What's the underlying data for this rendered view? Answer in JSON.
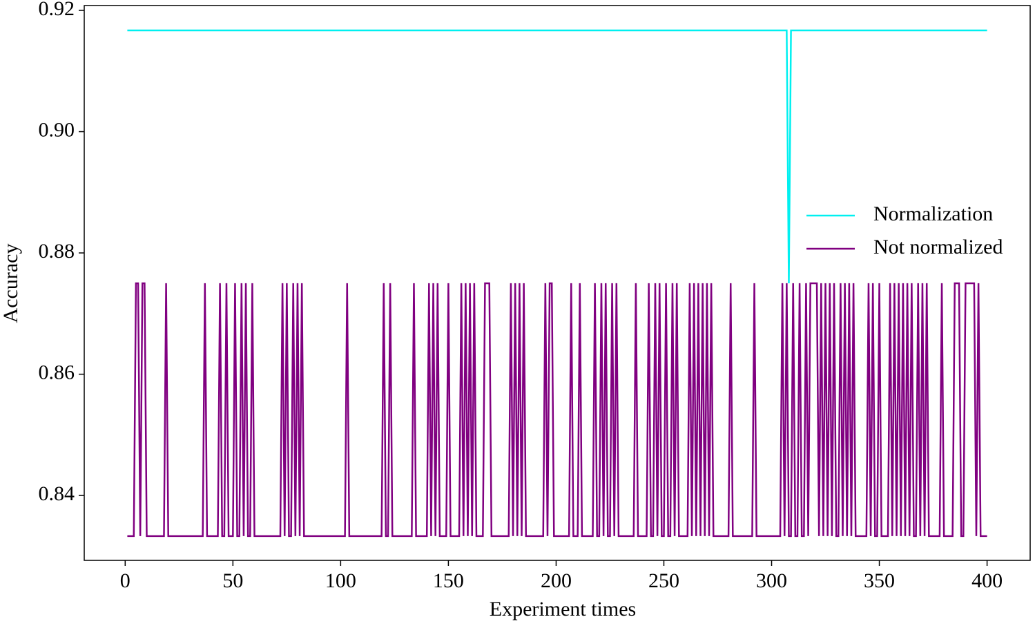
{
  "chart_data": {
    "type": "line",
    "xlabel": "Experiment times",
    "ylabel": "Accuracy",
    "xlim": [
      -19,
      420
    ],
    "ylim": [
      0.8293,
      0.9208
    ],
    "xticks": [
      0,
      50,
      100,
      150,
      200,
      250,
      300,
      350,
      400
    ],
    "yticks": [
      0.84,
      0.86,
      0.88,
      {
        "value": 0.9,
        "label": "0.90"
      },
      0.92
    ],
    "legend": "center right",
    "x": [
      1,
      2,
      3,
      4,
      5,
      6,
      7,
      8,
      9,
      10,
      11,
      12,
      13,
      14,
      15,
      16,
      17,
      18,
      19,
      20,
      21,
      22,
      23,
      24,
      25,
      26,
      27,
      28,
      29,
      30,
      31,
      32,
      33,
      34,
      35,
      36,
      37,
      38,
      39,
      40,
      41,
      42,
      43,
      44,
      45,
      46,
      47,
      48,
      49,
      50,
      51,
      52,
      53,
      54,
      55,
      56,
      57,
      58,
      59,
      60,
      61,
      62,
      63,
      64,
      65,
      66,
      67,
      68,
      69,
      70,
      71,
      72,
      73,
      74,
      75,
      76,
      77,
      78,
      79,
      80,
      81,
      82,
      83,
      84,
      85,
      86,
      87,
      88,
      89,
      90,
      91,
      92,
      93,
      94,
      95,
      96,
      97,
      98,
      99,
      100,
      101,
      102,
      103,
      104,
      105,
      106,
      107,
      108,
      109,
      110,
      111,
      112,
      113,
      114,
      115,
      116,
      117,
      118,
      119,
      120,
      121,
      122,
      123,
      124,
      125,
      126,
      127,
      128,
      129,
      130,
      131,
      132,
      133,
      134,
      135,
      136,
      137,
      138,
      139,
      140,
      141,
      142,
      143,
      144,
      145,
      146,
      147,
      148,
      149,
      150,
      151,
      152,
      153,
      154,
      155,
      156,
      157,
      158,
      159,
      160,
      161,
      162,
      163,
      164,
      165,
      166,
      167,
      168,
      169,
      170,
      171,
      172,
      173,
      174,
      175,
      176,
      177,
      178,
      179,
      180,
      181,
      182,
      183,
      184,
      185,
      186,
      187,
      188,
      189,
      190,
      191,
      192,
      193,
      194,
      195,
      196,
      197,
      198,
      199,
      200,
      201,
      202,
      203,
      204,
      205,
      206,
      207,
      208,
      209,
      210,
      211,
      212,
      213,
      214,
      215,
      216,
      217,
      218,
      219,
      220,
      221,
      222,
      223,
      224,
      225,
      226,
      227,
      228,
      229,
      230,
      231,
      232,
      233,
      234,
      235,
      236,
      237,
      238,
      239,
      240,
      241,
      242,
      243,
      244,
      245,
      246,
      247,
      248,
      249,
      250,
      251,
      252,
      253,
      254,
      255,
      256,
      257,
      258,
      259,
      260,
      261,
      262,
      263,
      264,
      265,
      266,
      267,
      268,
      269,
      270,
      271,
      272,
      273,
      274,
      275,
      276,
      277,
      278,
      279,
      280,
      281,
      282,
      283,
      284,
      285,
      286,
      287,
      288,
      289,
      290,
      291,
      292,
      293,
      294,
      295,
      296,
      297,
      298,
      299,
      300,
      301,
      302,
      303,
      304,
      305,
      306,
      307,
      308,
      309,
      310,
      311,
      312,
      313,
      314,
      315,
      316,
      317,
      318,
      319,
      320,
      321,
      322,
      323,
      324,
      325,
      326,
      327,
      328,
      329,
      330,
      331,
      332,
      333,
      334,
      335,
      336,
      337,
      338,
      339,
      340,
      341,
      342,
      343,
      344,
      345,
      346,
      347,
      348,
      349,
      350,
      351,
      352,
      353,
      354,
      355,
      356,
      357,
      358,
      359,
      360,
      361,
      362,
      363,
      364,
      365,
      366,
      367,
      368,
      369,
      370,
      371,
      372,
      373,
      374,
      375,
      376,
      377,
      378,
      379,
      380,
      381,
      382,
      383,
      384,
      385,
      386,
      387,
      388,
      389,
      390,
      391,
      392,
      393,
      394,
      395,
      396,
      397,
      398,
      399,
      400
    ],
    "series": [
      {
        "name": "Normalization",
        "color": "#00f0f0",
        "values": [
          0.9167,
          0.9167,
          0.9167,
          0.9167,
          0.9167,
          0.9167,
          0.9167,
          0.9167,
          0.9167,
          0.9167,
          0.9167,
          0.9167,
          0.9167,
          0.9167,
          0.9167,
          0.9167,
          0.9167,
          0.9167,
          0.9167,
          0.9167,
          0.9167,
          0.9167,
          0.9167,
          0.9167,
          0.9167,
          0.9167,
          0.9167,
          0.9167,
          0.9167,
          0.9167,
          0.9167,
          0.9167,
          0.9167,
          0.9167,
          0.9167,
          0.9167,
          0.9167,
          0.9167,
          0.9167,
          0.9167,
          0.9167,
          0.9167,
          0.9167,
          0.9167,
          0.9167,
          0.9167,
          0.9167,
          0.9167,
          0.9167,
          0.9167,
          0.9167,
          0.9167,
          0.9167,
          0.9167,
          0.9167,
          0.9167,
          0.9167,
          0.9167,
          0.9167,
          0.9167,
          0.9167,
          0.9167,
          0.9167,
          0.9167,
          0.9167,
          0.9167,
          0.9167,
          0.9167,
          0.9167,
          0.9167,
          0.9167,
          0.9167,
          0.9167,
          0.9167,
          0.9167,
          0.9167,
          0.9167,
          0.9167,
          0.9167,
          0.9167,
          0.9167,
          0.9167,
          0.9167,
          0.9167,
          0.9167,
          0.9167,
          0.9167,
          0.9167,
          0.9167,
          0.9167,
          0.9167,
          0.9167,
          0.9167,
          0.9167,
          0.9167,
          0.9167,
          0.9167,
          0.9167,
          0.9167,
          0.9167,
          0.9167,
          0.9167,
          0.9167,
          0.9167,
          0.9167,
          0.9167,
          0.9167,
          0.9167,
          0.9167,
          0.9167,
          0.9167,
          0.9167,
          0.9167,
          0.9167,
          0.9167,
          0.9167,
          0.9167,
          0.9167,
          0.9167,
          0.9167,
          0.9167,
          0.9167,
          0.9167,
          0.9167,
          0.9167,
          0.9167,
          0.9167,
          0.9167,
          0.9167,
          0.9167,
          0.9167,
          0.9167,
          0.9167,
          0.9167,
          0.9167,
          0.9167,
          0.9167,
          0.9167,
          0.9167,
          0.9167,
          0.9167,
          0.9167,
          0.9167,
          0.9167,
          0.9167,
          0.9167,
          0.9167,
          0.9167,
          0.9167,
          0.9167,
          0.9167,
          0.9167,
          0.9167,
          0.9167,
          0.9167,
          0.9167,
          0.9167,
          0.9167,
          0.9167,
          0.9167,
          0.9167,
          0.9167,
          0.9167,
          0.9167,
          0.9167,
          0.9167,
          0.9167,
          0.9167,
          0.9167,
          0.9167,
          0.9167,
          0.9167,
          0.9167,
          0.9167,
          0.9167,
          0.9167,
          0.9167,
          0.9167,
          0.9167,
          0.9167,
          0.9167,
          0.9167,
          0.9167,
          0.9167,
          0.9167,
          0.9167,
          0.9167,
          0.9167,
          0.9167,
          0.9167,
          0.9167,
          0.9167,
          0.9167,
          0.9167,
          0.9167,
          0.9167,
          0.9167,
          0.9167,
          0.9167,
          0.9167,
          0.9167,
          0.9167,
          0.9167,
          0.9167,
          0.9167,
          0.9167,
          0.9167,
          0.9167,
          0.9167,
          0.9167,
          0.9167,
          0.9167,
          0.9167,
          0.9167,
          0.9167,
          0.9167,
          0.9167,
          0.9167,
          0.9167,
          0.9167,
          0.9167,
          0.9167,
          0.9167,
          0.9167,
          0.9167,
          0.9167,
          0.9167,
          0.9167,
          0.9167,
          0.9167,
          0.9167,
          0.9167,
          0.9167,
          0.9167,
          0.9167,
          0.9167,
          0.9167,
          0.9167,
          0.9167,
          0.9167,
          0.9167,
          0.9167,
          0.9167,
          0.9167,
          0.9167,
          0.9167,
          0.9167,
          0.9167,
          0.9167,
          0.9167,
          0.9167,
          0.9167,
          0.9167,
          0.9167,
          0.9167,
          0.9167,
          0.9167,
          0.9167,
          0.9167,
          0.9167,
          0.9167,
          0.9167,
          0.9167,
          0.9167,
          0.9167,
          0.9167,
          0.9167,
          0.9167,
          0.9167,
          0.9167,
          0.9167,
          0.9167,
          0.9167,
          0.9167,
          0.9167,
          0.9167,
          0.9167,
          0.9167,
          0.9167,
          0.9167,
          0.9167,
          0.9167,
          0.9167,
          0.9167,
          0.9167,
          0.9167,
          0.9167,
          0.9167,
          0.9167,
          0.9167,
          0.9167,
          0.9167,
          0.9167,
          0.9167,
          0.9167,
          0.9167,
          0.9167,
          0.9167,
          0.9167,
          0.9167,
          0.9167,
          0.9167,
          0.9167,
          0.9167,
          0.9167,
          0.9167,
          0.9167,
          0.875,
          0.9167,
          0.9167,
          0.9167,
          0.9167,
          0.9167,
          0.9167,
          0.9167,
          0.9167,
          0.9167,
          0.9167,
          0.9167,
          0.9167,
          0.9167,
          0.9167,
          0.9167,
          0.9167,
          0.9167,
          0.9167,
          0.9167,
          0.9167,
          0.9167,
          0.9167,
          0.9167,
          0.9167,
          0.9167,
          0.9167,
          0.9167,
          0.9167,
          0.9167,
          0.9167,
          0.9167,
          0.9167,
          0.9167,
          0.9167,
          0.9167,
          0.9167,
          0.9167,
          0.9167,
          0.9167,
          0.9167,
          0.9167,
          0.9167,
          0.9167,
          0.9167,
          0.9167,
          0.9167,
          0.9167,
          0.9167,
          0.9167,
          0.9167,
          0.9167,
          0.9167,
          0.9167,
          0.9167,
          0.9167,
          0.9167,
          0.9167,
          0.9167,
          0.9167,
          0.9167,
          0.9167,
          0.9167,
          0.9167,
          0.9167,
          0.9167,
          0.9167,
          0.9167,
          0.9167,
          0.9167,
          0.9167,
          0.9167,
          0.9167,
          0.9167,
          0.9167,
          0.9167,
          0.9167,
          0.9167,
          0.9167,
          0.9167,
          0.9167,
          0.9167,
          0.9167,
          0.9167,
          0.9167,
          0.9167,
          0.9167,
          0.9167,
          0.9167,
          0.9167,
          0.9167,
          0.9167,
          0.9167
        ]
      },
      {
        "name": "Not normalized",
        "color": "#800080",
        "values": [
          0.8333,
          0.8333,
          0.8333,
          0.8333,
          0.875,
          0.875,
          0.8333,
          0.875,
          0.875,
          0.8333,
          0.8333,
          0.8333,
          0.8333,
          0.8333,
          0.8333,
          0.8333,
          0.8333,
          0.8333,
          0.875,
          0.8333,
          0.8333,
          0.8333,
          0.8333,
          0.8333,
          0.8333,
          0.8333,
          0.8333,
          0.8333,
          0.8333,
          0.8333,
          0.8333,
          0.8333,
          0.8333,
          0.8333,
          0.8333,
          0.8333,
          0.875,
          0.8333,
          0.8333,
          0.8333,
          0.8333,
          0.8333,
          0.8333,
          0.875,
          0.8333,
          0.8333,
          0.875,
          0.8333,
          0.8333,
          0.8333,
          0.875,
          0.8333,
          0.8333,
          0.875,
          0.8333,
          0.875,
          0.8333,
          0.8333,
          0.875,
          0.8333,
          0.8333,
          0.8333,
          0.8333,
          0.8333,
          0.8333,
          0.8333,
          0.8333,
          0.8333,
          0.8333,
          0.8333,
          0.8333,
          0.8333,
          0.875,
          0.8333,
          0.875,
          0.8333,
          0.8333,
          0.875,
          0.8333,
          0.875,
          0.8333,
          0.875,
          0.8333,
          0.8333,
          0.8333,
          0.8333,
          0.8333,
          0.8333,
          0.8333,
          0.8333,
          0.8333,
          0.8333,
          0.8333,
          0.8333,
          0.8333,
          0.8333,
          0.8333,
          0.8333,
          0.8333,
          0.8333,
          0.8333,
          0.8333,
          0.875,
          0.8333,
          0.8333,
          0.8333,
          0.8333,
          0.8333,
          0.8333,
          0.8333,
          0.8333,
          0.8333,
          0.8333,
          0.8333,
          0.8333,
          0.8333,
          0.8333,
          0.8333,
          0.8333,
          0.875,
          0.8333,
          0.8333,
          0.875,
          0.8333,
          0.8333,
          0.8333,
          0.8333,
          0.8333,
          0.8333,
          0.8333,
          0.8333,
          0.8333,
          0.8333,
          0.875,
          0.8333,
          0.8333,
          0.8333,
          0.8333,
          0.8333,
          0.8333,
          0.875,
          0.8333,
          0.875,
          0.8333,
          0.875,
          0.8333,
          0.8333,
          0.8333,
          0.8333,
          0.875,
          0.8333,
          0.8333,
          0.8333,
          0.8333,
          0.8333,
          0.875,
          0.8333,
          0.875,
          0.8333,
          0.875,
          0.8333,
          0.875,
          0.8333,
          0.8333,
          0.8333,
          0.8333,
          0.875,
          0.875,
          0.875,
          0.8333,
          0.8333,
          0.8333,
          0.8333,
          0.8333,
          0.8333,
          0.8333,
          0.8333,
          0.8333,
          0.875,
          0.8333,
          0.875,
          0.8333,
          0.875,
          0.8333,
          0.875,
          0.8333,
          0.8333,
          0.8333,
          0.8333,
          0.8333,
          0.8333,
          0.8333,
          0.8333,
          0.8333,
          0.875,
          0.8333,
          0.875,
          0.875,
          0.8333,
          0.8333,
          0.8333,
          0.8333,
          0.8333,
          0.8333,
          0.8333,
          0.8333,
          0.875,
          0.8333,
          0.8333,
          0.8333,
          0.875,
          0.8333,
          0.8333,
          0.8333,
          0.8333,
          0.8333,
          0.8333,
          0.875,
          0.8333,
          0.8333,
          0.875,
          0.8333,
          0.875,
          0.8333,
          0.8333,
          0.875,
          0.8333,
          0.875,
          0.8333,
          0.8333,
          0.8333,
          0.8333,
          0.8333,
          0.8333,
          0.8333,
          0.8333,
          0.875,
          0.8333,
          0.8333,
          0.8333,
          0.8333,
          0.8333,
          0.875,
          0.8333,
          0.8333,
          0.875,
          0.8333,
          0.875,
          0.8333,
          0.8333,
          0.875,
          0.8333,
          0.8333,
          0.875,
          0.8333,
          0.875,
          0.8333,
          0.8333,
          0.8333,
          0.8333,
          0.8333,
          0.875,
          0.8333,
          0.875,
          0.8333,
          0.875,
          0.8333,
          0.875,
          0.8333,
          0.875,
          0.8333,
          0.875,
          0.8333,
          0.8333,
          0.8333,
          0.8333,
          0.8333,
          0.8333,
          0.8333,
          0.8333,
          0.875,
          0.8333,
          0.8333,
          0.8333,
          0.8333,
          0.8333,
          0.8333,
          0.8333,
          0.8333,
          0.8333,
          0.8333,
          0.875,
          0.8333,
          0.8333,
          0.8333,
          0.8333,
          0.8333,
          0.8333,
          0.8333,
          0.8333,
          0.8333,
          0.8333,
          0.8333,
          0.8333,
          0.875,
          0.8333,
          0.875,
          0.8333,
          0.8333,
          0.875,
          0.8333,
          0.8333,
          0.875,
          0.8333,
          0.8333,
          0.875,
          0.8333,
          0.875,
          0.875,
          0.875,
          0.875,
          0.8333,
          0.875,
          0.8333,
          0.875,
          0.8333,
          0.875,
          0.8333,
          0.875,
          0.8333,
          0.8333,
          0.875,
          0.8333,
          0.875,
          0.8333,
          0.875,
          0.8333,
          0.875,
          0.8333,
          0.8333,
          0.8333,
          0.8333,
          0.8333,
          0.8333,
          0.875,
          0.8333,
          0.875,
          0.8333,
          0.8333,
          0.875,
          0.8333,
          0.8333,
          0.8333,
          0.8333,
          0.875,
          0.8333,
          0.875,
          0.8333,
          0.875,
          0.8333,
          0.875,
          0.8333,
          0.875,
          0.8333,
          0.875,
          0.8333,
          0.8333,
          0.875,
          0.8333,
          0.875,
          0.8333,
          0.875,
          0.8333,
          0.8333,
          0.8333,
          0.8333,
          0.8333,
          0.8333,
          0.875,
          0.8333,
          0.8333,
          0.8333,
          0.8333,
          0.8333,
          0.875,
          0.875,
          0.875,
          0.8333,
          0.8333,
          0.875,
          0.875,
          0.875,
          0.875,
          0.875,
          0.8333,
          0.875,
          0.8333,
          0.8333,
          0.8333,
          0.8333
        ]
      }
    ]
  }
}
